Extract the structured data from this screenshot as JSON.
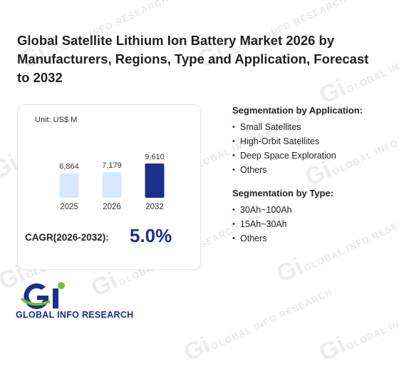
{
  "watermark": {
    "text": "GLOBAL INFO RESEARCH",
    "mark": "Gi"
  },
  "report": {
    "title": "Global Satellite Lithium Ion Battery Market 2026 by Manufacturers, Regions, Type and Application, Forecast to 2032"
  },
  "chart_card": {
    "unit_label": "Unit: US$ M",
    "cagr_label": "CAGR(2026-2032):",
    "cagr_value": "5.0%"
  },
  "chart_data": {
    "type": "bar",
    "categories": [
      "2025",
      "2026",
      "2032"
    ],
    "values": [
      6864,
      7179,
      9610
    ],
    "value_labels": [
      "6,864",
      "7,179",
      "9,610"
    ],
    "title": "",
    "xlabel": "",
    "ylabel": "",
    "unit": "US$ M",
    "colors": [
      "#d6e8fb",
      "#d6e8fb",
      "#1b2f8c"
    ],
    "grid": false
  },
  "segmentation_application": {
    "title": "Segmentation by Application:",
    "items": [
      "Small Satellites",
      "High-Orbit Satellites",
      "Deep Space Exploration",
      "Others"
    ]
  },
  "segmentation_type": {
    "title": "Segmentation by Type:",
    "items": [
      "30Ah~100Ah",
      "15Ah~30Ah",
      "Others"
    ]
  },
  "logo": {
    "text": "GLOBAL INFO RESEARCH",
    "colors": {
      "primary": "#1b2f8c",
      "accent": "#7dbb2e"
    }
  }
}
